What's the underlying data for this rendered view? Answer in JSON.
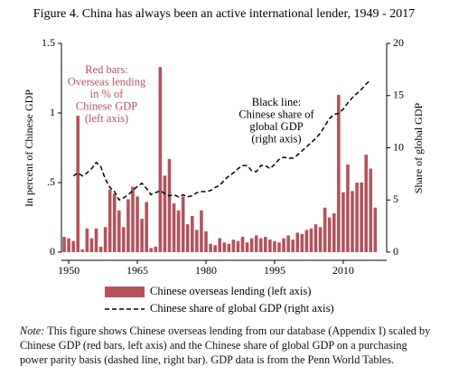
{
  "chart_data": {
    "type": "bar-line",
    "title": "Figure 4. China has always been an active international lender, 1949 - 2017",
    "ylabel": "In percent of Chinese GDP",
    "y2label": "Share of global GDP",
    "x": [
      1949,
      1950,
      1951,
      1952,
      1953,
      1954,
      1955,
      1956,
      1957,
      1958,
      1959,
      1960,
      1961,
      1962,
      1963,
      1964,
      1965,
      1966,
      1967,
      1968,
      1969,
      1970,
      1971,
      1972,
      1973,
      1974,
      1975,
      1976,
      1977,
      1978,
      1979,
      1980,
      1981,
      1982,
      1983,
      1984,
      1985,
      1986,
      1987,
      1988,
      1989,
      1990,
      1991,
      1992,
      1993,
      1994,
      1995,
      1996,
      1997,
      1998,
      1999,
      2000,
      2001,
      2002,
      2003,
      2004,
      2005,
      2006,
      2007,
      2008,
      2009,
      2010,
      2011,
      2012,
      2013,
      2014,
      2015,
      2016,
      2017
    ],
    "xlim": [
      1948.4,
      2019.5
    ],
    "xticks": [
      1950,
      1965,
      1980,
      1995,
      2010
    ],
    "ylim": [
      0,
      1.5
    ],
    "yticks": [
      0,
      {
        "value": 0.5,
        "label": ".5"
      },
      1,
      1.5
    ],
    "y2lim": [
      0,
      20
    ],
    "y2ticks": [
      0,
      5,
      10,
      15,
      20
    ],
    "series": [
      {
        "name": "Chinese overseas lending (left axis)",
        "kind": "bar",
        "color": "#b5525c",
        "values": [
          0.11,
          0.1,
          0.08,
          0.98,
          0.02,
          0.17,
          0.1,
          0.17,
          0.04,
          0.18,
          0.45,
          0.42,
          0.3,
          0.18,
          0.38,
          0.47,
          0.4,
          0.24,
          0.36,
          0.03,
          0.04,
          1.33,
          0.55,
          0.67,
          0.35,
          0.3,
          0.4,
          0.2,
          0.26,
          0.16,
          0.3,
          0.15,
          0.06,
          0.05,
          0.1,
          0.07,
          0.06,
          0.09,
          0.08,
          0.11,
          0.07,
          0.1,
          0.12,
          0.1,
          0.11,
          0.09,
          0.08,
          0.07,
          0.1,
          0.12,
          0.09,
          0.14,
          0.13,
          0.16,
          0.17,
          0.2,
          0.18,
          0.32,
          0.25,
          0.28,
          1.13,
          0.43,
          0.63,
          0.44,
          0.5,
          0.5,
          0.7,
          0.6,
          0.32
        ]
      },
      {
        "name": "Chinese share of global GDP (right axis)",
        "kind": "line",
        "axis": "y2",
        "color": "#000000",
        "dashed": true,
        "values": [
          null,
          null,
          7.3,
          7.6,
          7.3,
          7.6,
          8.0,
          8.6,
          8.2,
          7.0,
          6.2,
          5.8,
          5.0,
          5.2,
          5.5,
          5.9,
          6.3,
          6.6,
          6.1,
          5.5,
          5.7,
          5.9,
          5.6,
          5.4,
          5.5,
          5.3,
          5.5,
          5.3,
          5.4,
          5.7,
          5.8,
          5.8,
          5.9,
          6.2,
          6.4,
          6.9,
          7.3,
          7.6,
          8.0,
          8.3,
          8.3,
          7.8,
          7.7,
          8.3,
          8.3,
          8.0,
          8.4,
          8.9,
          9.1,
          9.0,
          9.0,
          9.3,
          9.7,
          10.1,
          10.5,
          10.9,
          11.4,
          12.1,
          12.8,
          13.2,
          13.3,
          13.7,
          14.3,
          14.8,
          15.2,
          15.6,
          16.1,
          16.5,
          null
        ]
      }
    ],
    "annotations": [
      {
        "color": "#b5525c",
        "lines": [
          "Red bars:",
          "Overseas lending",
          "in % of",
          "Chinese GDP",
          "(left axis)"
        ]
      },
      {
        "color": "#000000",
        "lines": [
          "Black line:",
          "Chinese share of",
          "global GDP",
          "(right axis)"
        ]
      }
    ],
    "note_label": "Note:",
    "note": "This figure shows Chinese overseas lending from our database (Appendix I) scaled by Chinese GDP (red bars, left axis) and the Chinese share of global GDP on a purchasing power parity basis (dashed line, right bar). GDP data is from the Penn World Tables."
  }
}
